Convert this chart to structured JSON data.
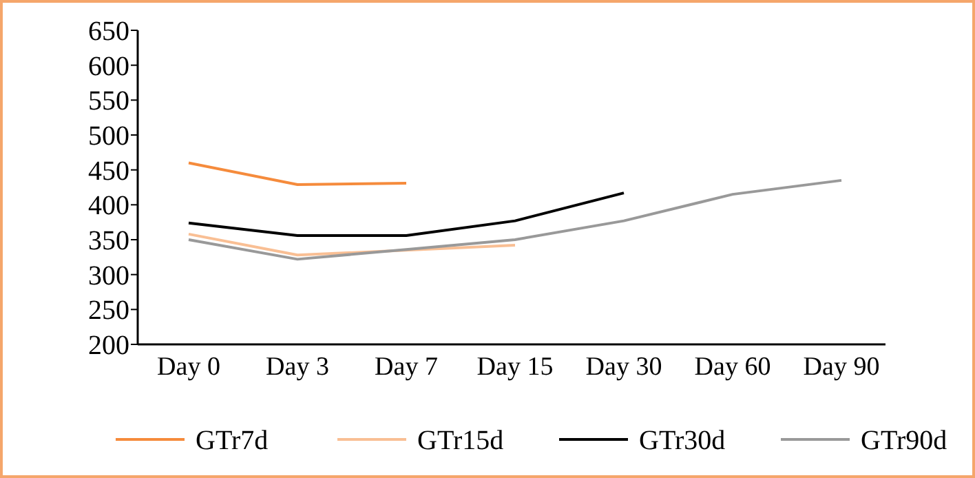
{
  "chart_data": {
    "type": "line",
    "categories": [
      "Day 0",
      "Day 3",
      "Day 7",
      "Day 15",
      "Day 30",
      "Day 60",
      "Day 90"
    ],
    "series": [
      {
        "name": "GTr7d",
        "color": "#f58b3c",
        "values": [
          460,
          429,
          431,
          null,
          null,
          null,
          null
        ]
      },
      {
        "name": "GTr15d",
        "color": "#f9bf94",
        "values": [
          358,
          328,
          335,
          342,
          null,
          null,
          null
        ]
      },
      {
        "name": "GTr30d",
        "color": "#000000",
        "values": [
          374,
          356,
          356,
          377,
          417,
          null,
          null
        ]
      },
      {
        "name": "GTr90d",
        "color": "#999999",
        "values": [
          350,
          322,
          336,
          350,
          377,
          415,
          435
        ]
      }
    ],
    "ylim": [
      200,
      650
    ],
    "yticks": [
      200,
      250,
      300,
      350,
      400,
      450,
      500,
      550,
      600,
      650
    ],
    "grid": false,
    "legend": "bottom",
    "marker": "none",
    "line_style": "solid"
  }
}
